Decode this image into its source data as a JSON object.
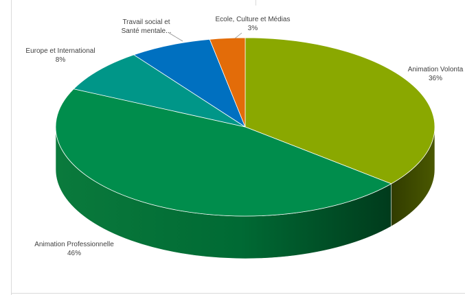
{
  "chart_data": {
    "type": "pie",
    "style": "3d-pie",
    "title": "",
    "start_angle_deg": 0,
    "direction": "clockwise",
    "slices": [
      {
        "label_lines": [
          "Animation Volonta"
        ],
        "percent_label": "36%",
        "value": 36,
        "color": "#8aa800",
        "side_color": "#3a4500"
      },
      {
        "label_lines": [
          "Animation Professionnelle"
        ],
        "percent_label": "46%",
        "value": 46,
        "color": "#008d4c",
        "side_color": "#005a30"
      },
      {
        "label_lines": [
          "Europe et International"
        ],
        "percent_label": "8%",
        "value": 8,
        "color": "#009688",
        "side_color": "#00665c"
      },
      {
        "label_lines": [
          "Travail social et",
          "Santé mentale..."
        ],
        "percent_label": "",
        "value": 7,
        "color": "#0070c0",
        "side_color": "#004a80"
      },
      {
        "label_lines": [
          "Ecole, Culture et Médias"
        ],
        "percent_label": "3%",
        "value": 3,
        "color": "#e36c09",
        "side_color": "#9a4806"
      }
    ],
    "legend": "none",
    "data_labels": "outside-with-leader-lines"
  }
}
